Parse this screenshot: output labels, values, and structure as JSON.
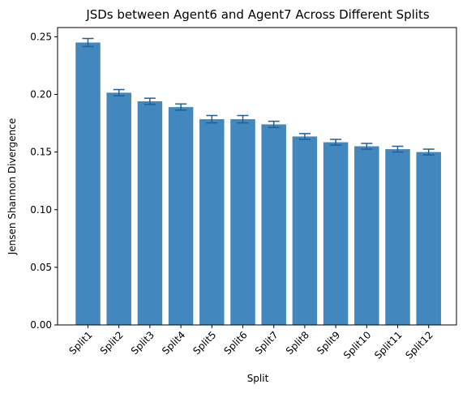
{
  "chart_data": {
    "type": "bar",
    "title": "JSDs between Agent6 and Agent7 Across Different Splits",
    "xlabel": "Split",
    "ylabel": "Jensen Shannon Divergence",
    "categories": [
      "Split1",
      "Split2",
      "Split3",
      "Split4",
      "Split5",
      "Split6",
      "Split7",
      "Split8",
      "Split9",
      "Split10",
      "Split11",
      "Split12"
    ],
    "values": [
      0.245,
      0.2015,
      0.194,
      0.189,
      0.1785,
      0.1785,
      0.174,
      0.1635,
      0.1585,
      0.155,
      0.1525,
      0.15
    ],
    "errors": [
      0.0035,
      0.0027,
      0.0027,
      0.0027,
      0.0032,
      0.0032,
      0.0027,
      0.0025,
      0.0025,
      0.0025,
      0.0025,
      0.0025
    ],
    "ylim": [
      0,
      0.258
    ],
    "yticks": [
      "0.00",
      "0.05",
      "0.10",
      "0.15",
      "0.20",
      "0.25"
    ],
    "ytick_values": [
      0,
      0.05,
      0.1,
      0.15,
      0.2,
      0.25
    ],
    "grid": false,
    "bar_color": "#2878b5",
    "error_color": "#1f5f9a"
  }
}
